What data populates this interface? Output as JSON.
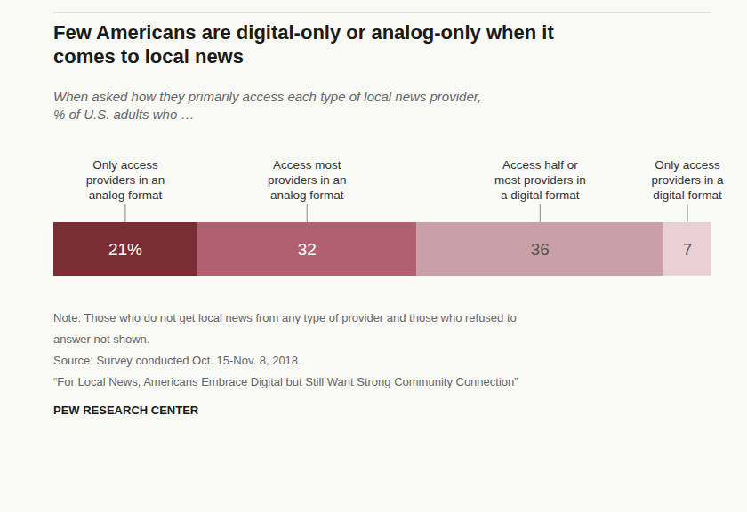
{
  "chart_data": {
    "type": "bar",
    "orientation": "horizontal",
    "stacked": true,
    "data_labels": true,
    "tick_labels": false,
    "title": "Few Americans are digital-only or analog-only when it\ncomes to local news",
    "subtitle": "When asked how they primarily access each type of local news provider,\n% of U.S. adults who …",
    "categories": [
      "Only access\nproviders in an\nanalog format",
      "Access most\nproviders in an\nanalog format",
      "Access half or\nmost providers in\na digital format",
      "Only access\nproviders in a\ndigital format"
    ],
    "values": [
      21,
      32,
      36,
      7
    ],
    "value_labels": [
      "21%",
      "32",
      "36",
      "7"
    ],
    "colors": [
      "#7b2d35",
      "#b06070",
      "#c9a0a8",
      "#e8d0d5"
    ],
    "xlim": [
      0,
      96
    ],
    "annotations": [
      "Note: Those who do not get local news from any type of provider and those who refused to",
      "answer not shown.",
      "Source: Survey conducted Oct. 15-Nov. 8, 2018.",
      "“For Local News, Americans Embrace Digital but Still Want Strong Community Connection”"
    ],
    "source": "PEW RESEARCH CENTER"
  }
}
